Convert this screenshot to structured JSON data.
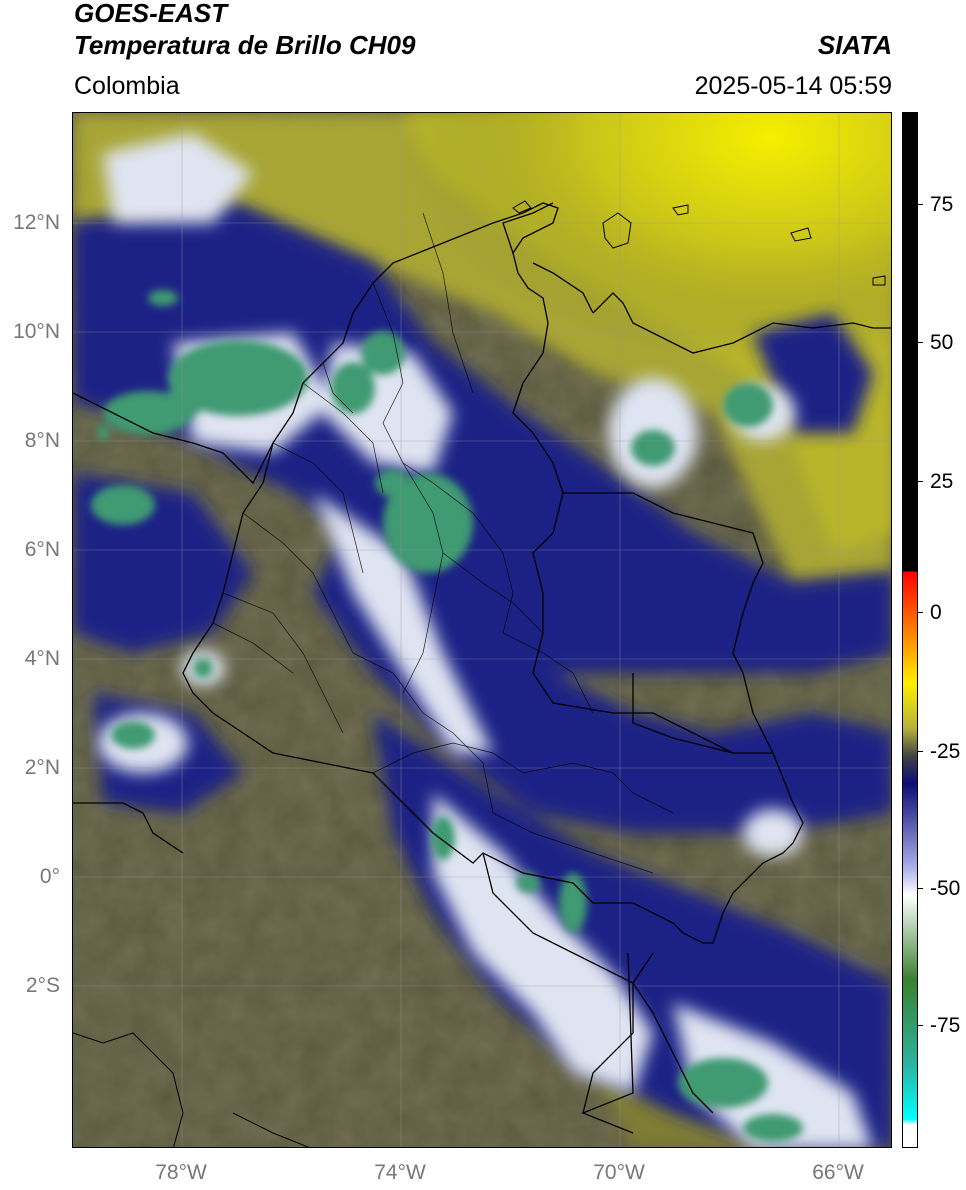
{
  "header": {
    "satellite": "GOES-EAST",
    "product": "Temperatura de Brillo CH09",
    "region": "Colombia",
    "agency": "SIATA",
    "datetime": "2025-05-14 05:59"
  },
  "map": {
    "lat_labels": [
      "12°N",
      "10°N",
      "8°N",
      "6°N",
      "4°N",
      "2°N",
      "0°",
      "2°S"
    ],
    "lon_labels": [
      "78°W",
      "74°W",
      "70°W",
      "66°W"
    ],
    "extent": {
      "lon_min": -80,
      "lon_max": -65,
      "lat_min": -5,
      "lat_max": 14
    },
    "colors": {
      "warm_band": "#5d5a3c",
      "yellow": "#d8d400",
      "cold_blue": "#1a1f8a",
      "cold_white": "#e8ecf5",
      "coldest_green": "#3c8f6a"
    }
  },
  "colorbar": {
    "tick_labels": [
      "75",
      "50",
      "25",
      "0",
      "-25",
      "-50",
      "-75"
    ],
    "range": [
      -95,
      90
    ],
    "stops": [
      {
        "value": 90,
        "color": "#000000"
      },
      {
        "value": 8,
        "color": "#000000"
      },
      {
        "value": 8,
        "color": "#ff0000"
      },
      {
        "value": -12,
        "color": "#ffee00"
      },
      {
        "value": -20,
        "color": "#b7b33a"
      },
      {
        "value": -25,
        "color": "#444444"
      },
      {
        "value": -30,
        "color": "#0c0c78"
      },
      {
        "value": -45,
        "color": "#aab0e8"
      },
      {
        "value": -50,
        "color": "#ffffff"
      },
      {
        "value": -65,
        "color": "#3a8030"
      },
      {
        "value": -80,
        "color": "#2bb4a0"
      },
      {
        "value": -90,
        "color": "#00ffff"
      },
      {
        "value": -91,
        "color": "#ffffff"
      },
      {
        "value": -95,
        "color": "#ffffff"
      }
    ]
  }
}
